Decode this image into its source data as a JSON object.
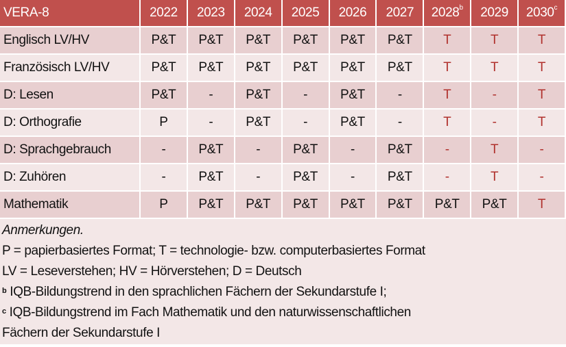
{
  "table": {
    "header": [
      "VERA-8",
      "2022",
      "2023",
      "2024",
      "2025",
      "2026",
      "2027",
      "2028",
      "2029",
      "2030"
    ],
    "header_superscripts": {
      "7": "b",
      "9": "c"
    },
    "rows": [
      [
        "Englisch LV/HV",
        "P&T",
        "P&T",
        "P&T",
        "P&T",
        "P&T",
        "P&T",
        "T",
        "T",
        "T"
      ],
      [
        "Französisch LV/HV",
        "P&T",
        "P&T",
        "P&T",
        "P&T",
        "P&T",
        "P&T",
        "T",
        "T",
        "T"
      ],
      [
        "D: Lesen",
        "P&T",
        "-",
        "P&T",
        "-",
        "P&T",
        "-",
        "T",
        "-",
        "T"
      ],
      [
        "D: Orthografie",
        "P",
        "-",
        "P&T",
        "-",
        "P&T",
        "-",
        "T",
        "-",
        "T"
      ],
      [
        "D: Sprachgebrauch",
        "-",
        "P&T",
        "-",
        "P&T",
        "-",
        "P&T",
        "-",
        "T",
        "-"
      ],
      [
        "D: Zuhören",
        "-",
        "P&T",
        "-",
        "P&T",
        "-",
        "P&T",
        "-",
        "T",
        "-"
      ],
      [
        "Mathematik",
        "P",
        "P&T",
        "P&T",
        "P&T",
        "P&T",
        "P&T",
        "P&T",
        "P&T",
        "T"
      ]
    ]
  },
  "notes": {
    "title": "Anmerkungen.",
    "line1": "P = papierbasiertes Format; T = technologie- bzw. computerbasiertes Format",
    "line2": "LV = Leseverstehen; HV = Hörverstehen; D = Deutsch",
    "b_mark": "b",
    "b_text": " IQB-Bildungstrend in den sprachlichen Fächern der Sekundarstufe I;",
    "c_mark": "c",
    "c_text1": " IQB-Bildungstrend im Fach Mathematik und den naturwissenschaftlichen",
    "c_text2": "Fächern der Sekundarstufe I"
  },
  "colors": {
    "header": "#c0504d",
    "row_dark": "#e8cfd0",
    "row_light": "#f3e7e7",
    "future_text": "#b0302c"
  }
}
